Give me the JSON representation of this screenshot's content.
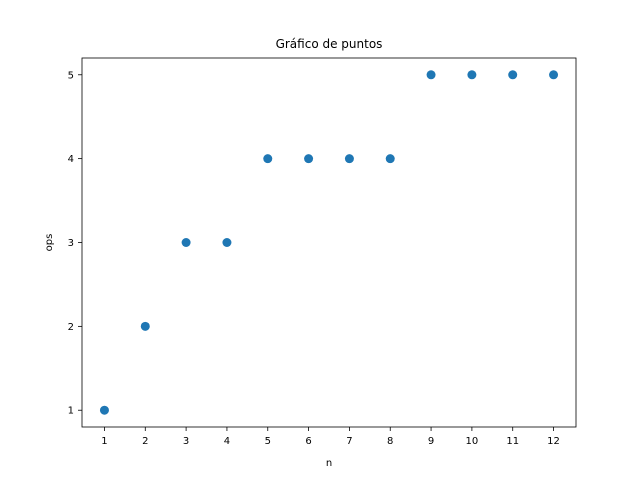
{
  "chart_data": {
    "type": "scatter",
    "title": "Gráfico de puntos",
    "xlabel": "n",
    "ylabel": "ops",
    "x": [
      1,
      2,
      3,
      4,
      5,
      6,
      7,
      8,
      9,
      10,
      11,
      12
    ],
    "series": [
      {
        "values": [
          1,
          2,
          3,
          3,
          4,
          4,
          4,
          4,
          5,
          5,
          5,
          5
        ],
        "color": "#1f77b4"
      }
    ],
    "xticks": [
      1,
      2,
      3,
      4,
      5,
      6,
      7,
      8,
      9,
      10,
      11,
      12
    ],
    "yticks": [
      1,
      2,
      3,
      4,
      5
    ],
    "xlim": [
      0.45,
      12.55
    ],
    "ylim": [
      0.8,
      5.2
    ],
    "grid": false,
    "legend": "none"
  }
}
